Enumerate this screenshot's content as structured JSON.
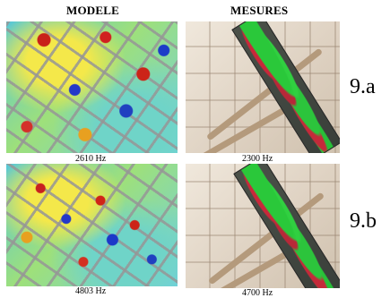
{
  "headers": {
    "left": "MODELE",
    "right": "MESURES"
  },
  "rows": [
    {
      "model_freq": "2610 Hz",
      "measure_freq": "2300 Hz",
      "label": "9.a"
    },
    {
      "model_freq": "4803 Hz",
      "measure_freq": "4700 Hz",
      "label": "9.b"
    }
  ]
}
